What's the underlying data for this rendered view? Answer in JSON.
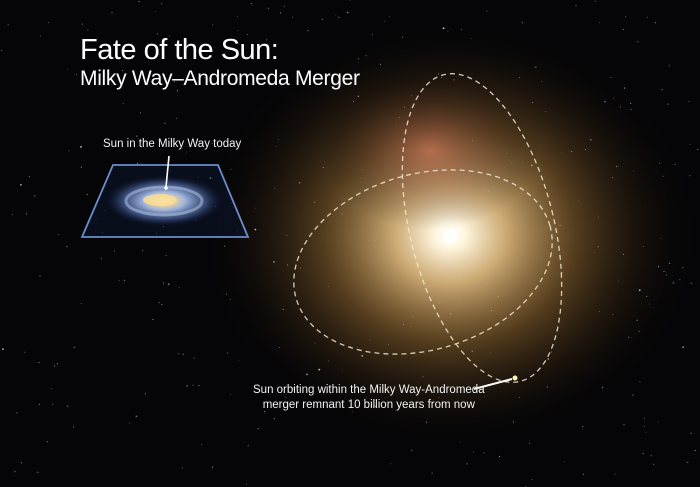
{
  "title": "Fate of the Sun:",
  "subtitle": "Milky Way–Andromeda Merger",
  "labels": {
    "sun_today": "Sun in the Milky Way today",
    "sun_future_line1": "Sun orbiting within the Milky Way-Andromeda",
    "sun_future_line2": "merger remnant 10 billion years from now"
  },
  "colors": {
    "background": "#050507",
    "remnant_glow": "#e6b060",
    "orbit": "#f0e6d0",
    "inset_frame": "#6a8ec8"
  }
}
